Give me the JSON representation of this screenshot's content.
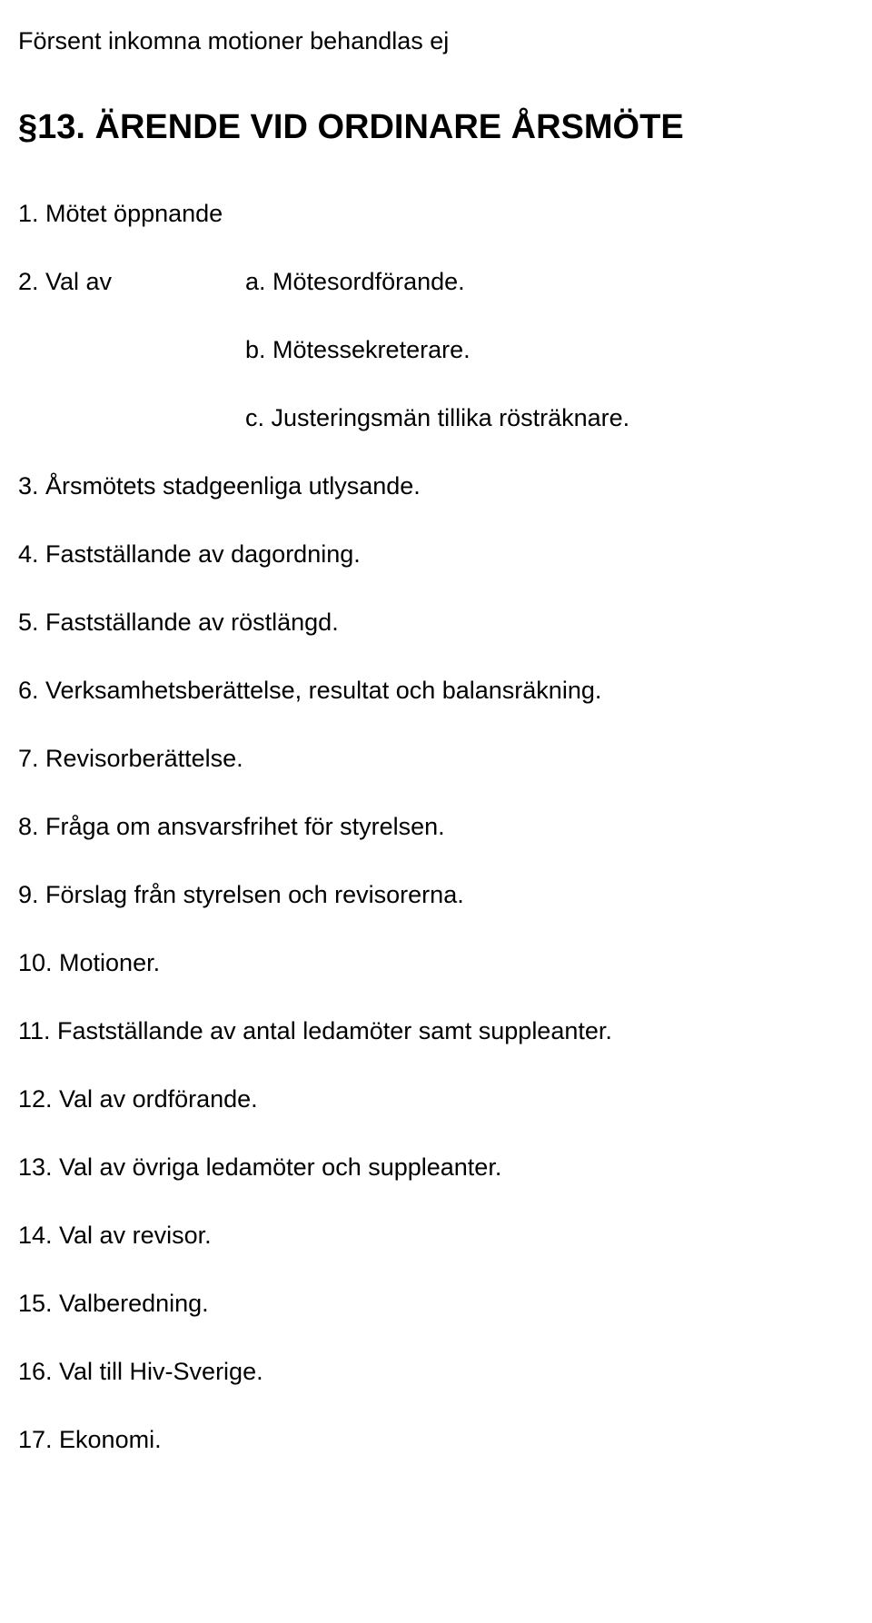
{
  "colors": {
    "background": "#ffffff",
    "text": "#000000"
  },
  "typography": {
    "body_font": "Verdana, Geneva, sans-serif",
    "body_size_pt": 20,
    "heading_size_pt": 28,
    "heading_weight": "bold"
  },
  "intro": "Försent inkomna motioner behandlas ej",
  "heading": "§13. ÄRENDE VID ORDINARE ÅRSMÖTE",
  "items": {
    "i1": "1. Mötet öppnande",
    "i2_left": "2. Val av",
    "i2a": "a. Mötesordförande.",
    "i2b": "b. Mötessekreterare.",
    "i2c": "c. Justeringsmän tillika rösträknare.",
    "i3": "3. Årsmötets stadgeenliga utlysande.",
    "i4": "4. Fastställande av dagordning.",
    "i5": "5. Fastställande av röstlängd.",
    "i6": "6. Verksamhetsberättelse, resultat och balansräkning.",
    "i7": "7. Revisorberättelse.",
    "i8": "8. Fråga om ansvarsfrihet för styrelsen.",
    "i9": "9. Förslag från styrelsen och revisorerna.",
    "i10": "10. Motioner.",
    "i11": "11. Fastställande av antal ledamöter samt suppleanter.",
    "i12": "12. Val av ordförande.",
    "i13": "13. Val av övriga ledamöter och suppleanter.",
    "i14": "14. Val av revisor.",
    "i15": "15. Valberedning.",
    "i16": "16. Val till Hiv-Sverige.",
    "i17": "17. Ekonomi."
  }
}
